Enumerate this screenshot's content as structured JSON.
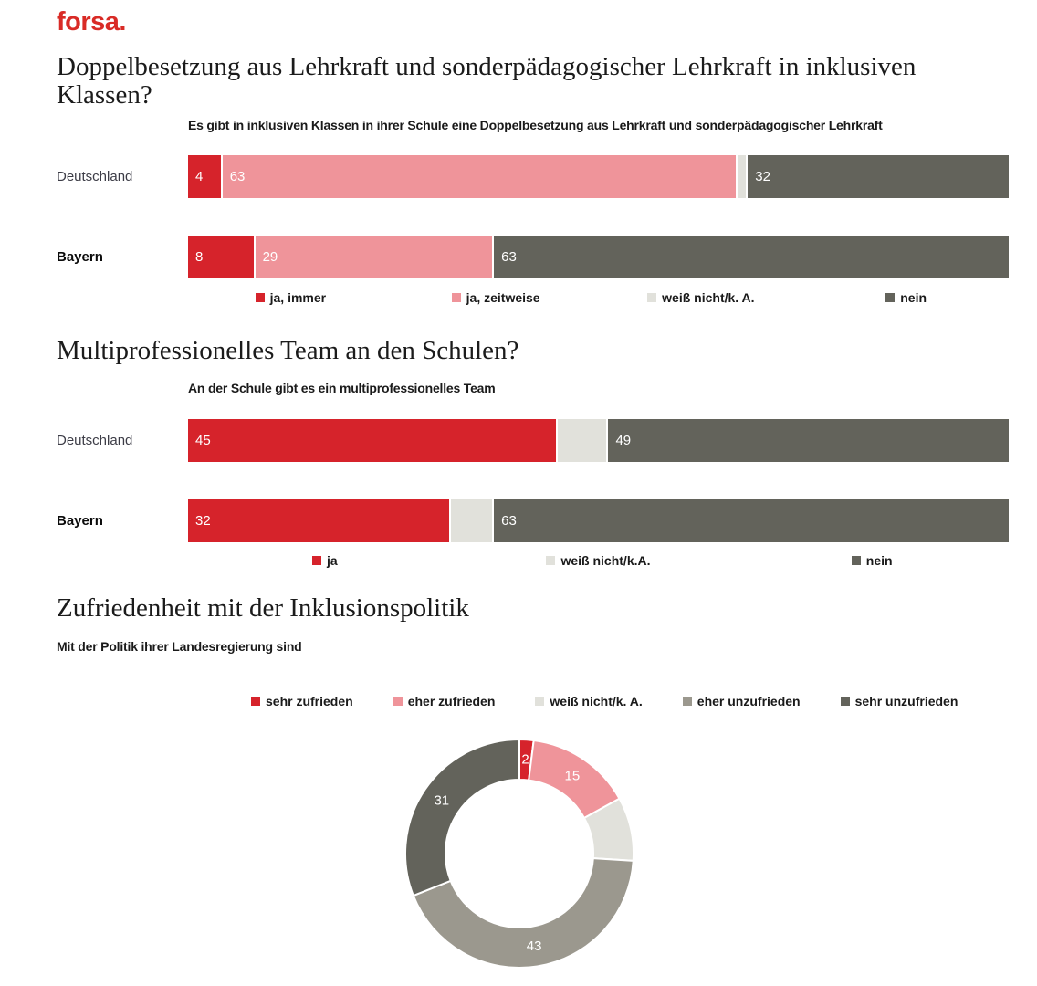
{
  "page": {
    "logo": "forsa."
  },
  "colors": {
    "logo_red": "#d92b26",
    "red": "#d6232b",
    "pink": "#ef949a",
    "lightgray": "#e1e1db",
    "taupe": "#9b988e",
    "dark": "#63635b",
    "title_text": "#1b1b1b",
    "category_text": "#3c3c46"
  },
  "chart_data": [
    {
      "type": "bar",
      "orientation": "horizontal-stacked",
      "title": "Doppelbesetzung aus Lehrkraft und sonderpädagogischer Lehrkraft in inklusiven Klassen?",
      "subtitle": "Es gibt in inklusiven Klassen in ihrer Schule eine Doppelbesetzung aus Lehrkraft und sonderpädagogischer Lehrkraft",
      "categories": [
        "Deutschland",
        "Bayern"
      ],
      "xlim": [
        0,
        100
      ],
      "legend_position": "bottom",
      "series": [
        {
          "name": "ja, immer",
          "color": "red",
          "values": [
            4,
            8
          ],
          "labels_hidden": false
        },
        {
          "name": "ja, zeitweise",
          "color": "pink",
          "values": [
            63,
            29
          ],
          "labels_hidden": false
        },
        {
          "name": "weiß nicht/k. A.",
          "color": "lightgray",
          "values": [
            1,
            0
          ],
          "labels_hidden": true
        },
        {
          "name": "nein",
          "color": "dark",
          "values": [
            32,
            63
          ],
          "labels_hidden": false
        }
      ]
    },
    {
      "type": "bar",
      "orientation": "horizontal-stacked",
      "title": "Multiprofessionelles Team an den Schulen?",
      "subtitle": "An der Schule gibt es ein multiprofessionelles Team",
      "categories": [
        "Deutschland",
        "Bayern"
      ],
      "xlim": [
        0,
        100
      ],
      "legend_position": "bottom",
      "series": [
        {
          "name": "ja",
          "color": "red",
          "values": [
            45,
            32
          ],
          "labels_hidden": false
        },
        {
          "name": "weiß nicht/k.A.",
          "color": "lightgray",
          "values": [
            6,
            5
          ],
          "labels_hidden": true
        },
        {
          "name": "nein",
          "color": "dark",
          "values": [
            49,
            63
          ],
          "labels_hidden": false
        }
      ]
    },
    {
      "type": "donut",
      "title": "Zufriedenheit mit der Inklusionspolitik",
      "subtitle": "Mit der Politik ihrer Landesregierung sind",
      "legend_position": "top",
      "slices": [
        {
          "name": "sehr zufrieden",
          "color": "red",
          "value": 2,
          "label": "2"
        },
        {
          "name": "eher zufrieden",
          "color": "pink",
          "value": 15,
          "label": "15"
        },
        {
          "name": "weiß nicht/k. A.",
          "color": "lightgray",
          "value": 9,
          "label": ""
        },
        {
          "name": "eher unzufrieden",
          "color": "taupe",
          "value": 43,
          "label": "43"
        },
        {
          "name": "sehr unzufrieden",
          "color": "dark",
          "value": 31,
          "label": "31"
        }
      ]
    }
  ]
}
